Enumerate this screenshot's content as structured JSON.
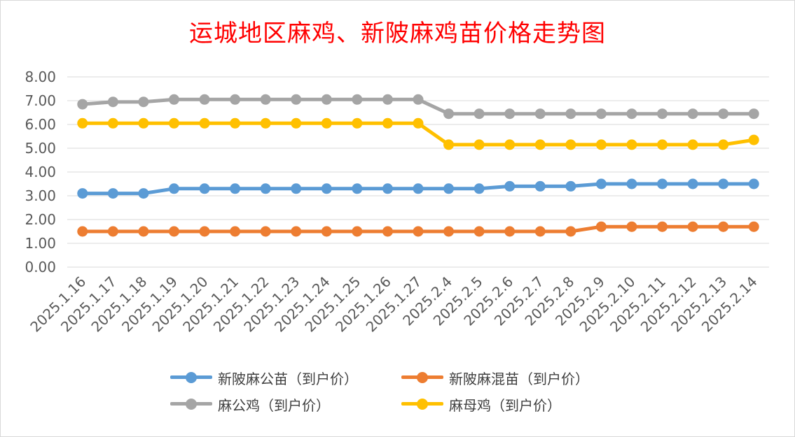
{
  "chart_data": {
    "type": "line",
    "title": "运城地区麻鸡、新陂麻鸡苗价格走势图",
    "xlabel": "",
    "ylabel": "",
    "ylim": [
      0,
      8
    ],
    "y_ticks": [
      "0.00",
      "1.00",
      "2.00",
      "3.00",
      "4.00",
      "5.00",
      "6.00",
      "7.00",
      "8.00"
    ],
    "grid": "horizontal",
    "legend_position": "bottom",
    "categories": [
      "2025.1.16",
      "2025.1.17",
      "2025.1.18",
      "2025.1.19",
      "2025.1.20",
      "2025.1.21",
      "2025.1.22",
      "2025.1.23",
      "2025.1.24",
      "2025.1.25",
      "2025.1.26",
      "2025.1.27",
      "2025.2.4",
      "2025.2.5",
      "2025.2.6",
      "2025.2.7",
      "2025.2.8",
      "2025.2.9",
      "2025.2.10",
      "2025.2.11",
      "2025.2.12",
      "2025.2.13",
      "2025.2.14"
    ],
    "series": [
      {
        "name": "新陂麻公苗（到户价）",
        "color": "#5b9bd5",
        "values": [
          3.1,
          3.1,
          3.1,
          3.3,
          3.3,
          3.3,
          3.3,
          3.3,
          3.3,
          3.3,
          3.3,
          3.3,
          3.3,
          3.3,
          3.4,
          3.4,
          3.4,
          3.5,
          3.5,
          3.5,
          3.5,
          3.5,
          3.5
        ]
      },
      {
        "name": "新陂麻混苗（到户价）",
        "color": "#ed7d31",
        "values": [
          1.5,
          1.5,
          1.5,
          1.5,
          1.5,
          1.5,
          1.5,
          1.5,
          1.5,
          1.5,
          1.5,
          1.5,
          1.5,
          1.5,
          1.5,
          1.5,
          1.5,
          1.7,
          1.7,
          1.7,
          1.7,
          1.7,
          1.7
        ]
      },
      {
        "name": "麻公鸡（到户价）",
        "color": "#a5a5a5",
        "values": [
          6.85,
          6.95,
          6.95,
          7.05,
          7.05,
          7.05,
          7.05,
          7.05,
          7.05,
          7.05,
          7.05,
          7.05,
          6.45,
          6.45,
          6.45,
          6.45,
          6.45,
          6.45,
          6.45,
          6.45,
          6.45,
          6.45,
          6.45
        ]
      },
      {
        "name": "麻母鸡（到户价）",
        "color": "#ffc000",
        "values": [
          6.05,
          6.05,
          6.05,
          6.05,
          6.05,
          6.05,
          6.05,
          6.05,
          6.05,
          6.05,
          6.05,
          6.05,
          5.15,
          5.15,
          5.15,
          5.15,
          5.15,
          5.15,
          5.15,
          5.15,
          5.15,
          5.15,
          5.35
        ]
      }
    ]
  }
}
